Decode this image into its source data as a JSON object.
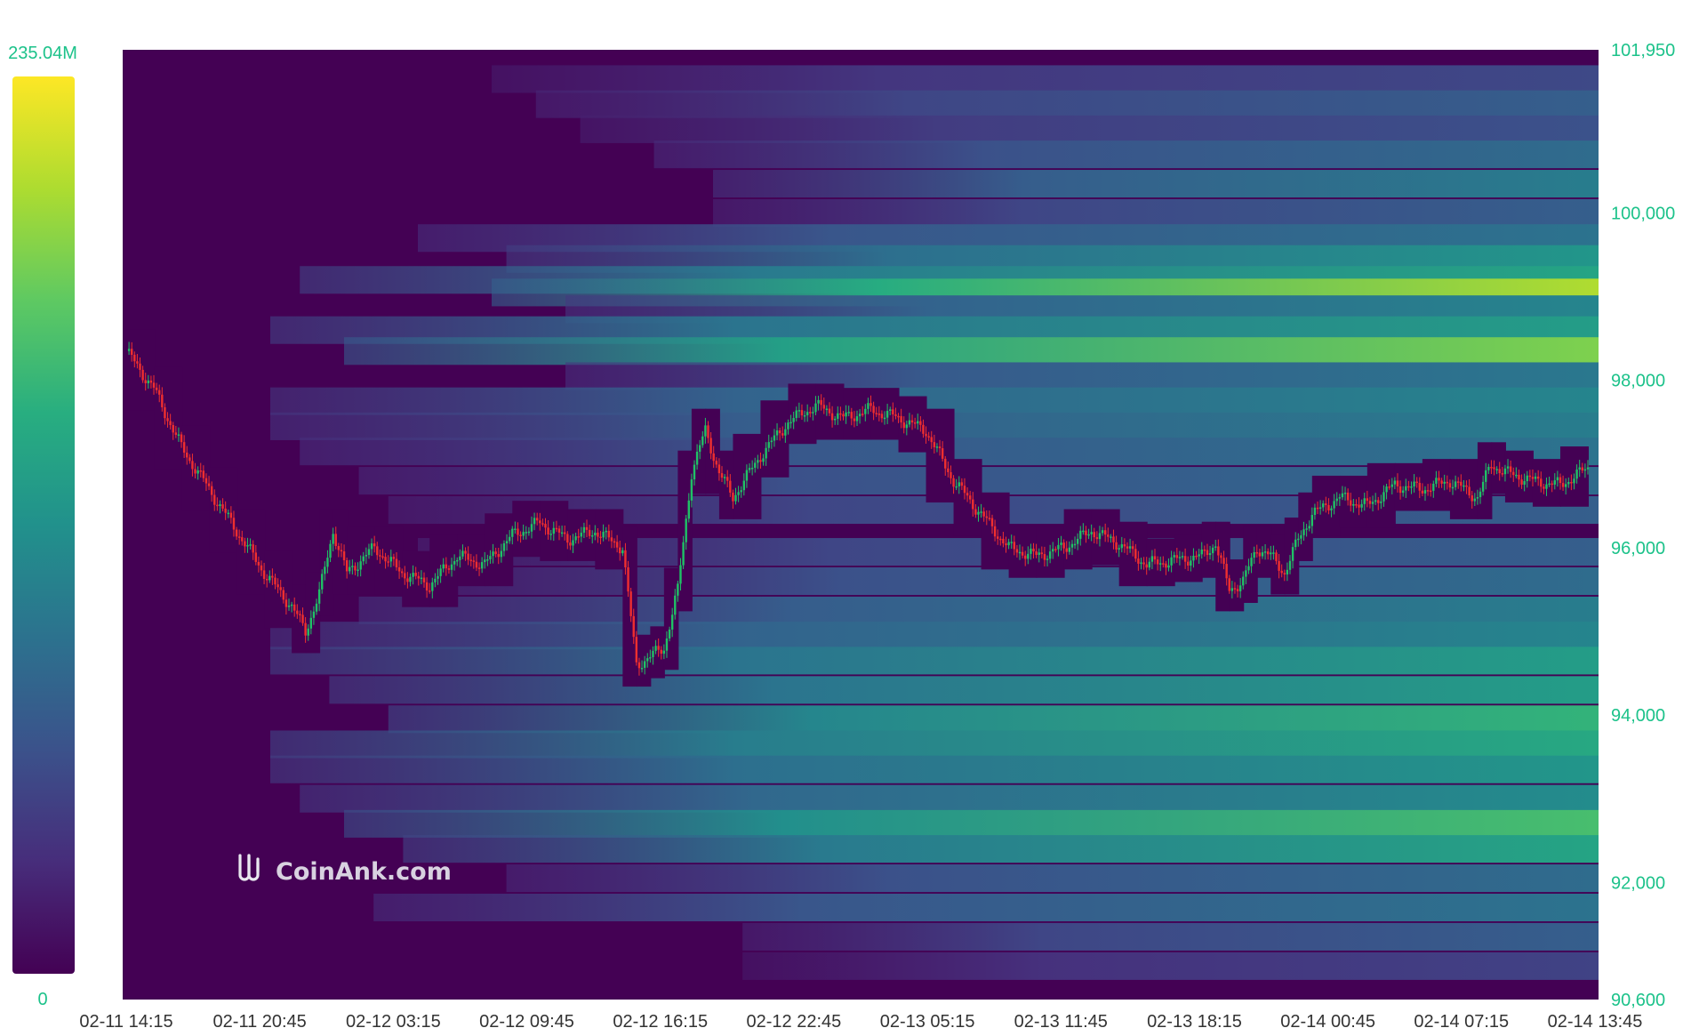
{
  "colors": {
    "scale": [
      "#440154",
      "#472d7b",
      "#3b528b",
      "#2c728e",
      "#21918c",
      "#28ae80",
      "#5ec962",
      "#addc30",
      "#fde725"
    ],
    "up": "#1fc266",
    "down": "#ef2f2f",
    "axis_text": "#1cc28a",
    "background_empty": "#440154"
  },
  "watermark": {
    "icon": "coinank-logo-icon",
    "text": "CoinAnk.com"
  },
  "chart_data": {
    "type": "heatmap",
    "title": "",
    "xlabel": "",
    "ylabel": "",
    "color_scale": {
      "min": 0,
      "max": 235.04,
      "min_label": "0",
      "max_label": "235.04M"
    },
    "ylim": [
      90600,
      101950
    ],
    "y_ticks": [
      {
        "value": 101950,
        "label": "101,950"
      },
      {
        "value": 100000,
        "label": "100,000"
      },
      {
        "value": 98000,
        "label": "98,000"
      },
      {
        "value": 96000,
        "label": "96,000"
      },
      {
        "value": 94000,
        "label": "94,000"
      },
      {
        "value": 92000,
        "label": "92,000"
      },
      {
        "value": 90600,
        "label": "90,600"
      }
    ],
    "x_ticks": [
      "02-11 14:15",
      "02-11 20:45",
      "02-12 03:15",
      "02-12 09:45",
      "02-12 16:15",
      "02-12 22:45",
      "02-13 05:15",
      "02-13 11:45",
      "02-13 18:15",
      "02-14 00:45",
      "02-14 07:15",
      "02-14 13:45"
    ],
    "price_path": [
      [
        0,
        98350
      ],
      [
        1,
        97900
      ],
      [
        2,
        97200
      ],
      [
        3,
        96700
      ],
      [
        4,
        96200
      ],
      [
        5,
        95700
      ],
      [
        6,
        95300
      ],
      [
        6.5,
        95000
      ],
      [
        7,
        95450
      ],
      [
        7.5,
        96200
      ],
      [
        8,
        95700
      ],
      [
        9,
        96000
      ],
      [
        10,
        95700
      ],
      [
        11,
        95550
      ],
      [
        12,
        95900
      ],
      [
        13,
        95800
      ],
      [
        14,
        96150
      ],
      [
        15,
        96300
      ],
      [
        16,
        96100
      ],
      [
        17,
        96200
      ],
      [
        18,
        96000
      ],
      [
        18.5,
        94600
      ],
      [
        19,
        94700
      ],
      [
        19.5,
        94800
      ],
      [
        20,
        95500
      ],
      [
        20.5,
        96900
      ],
      [
        21,
        97400
      ],
      [
        21.5,
        96900
      ],
      [
        22,
        96600
      ],
      [
        23,
        97100
      ],
      [
        24,
        97500
      ],
      [
        25,
        97700
      ],
      [
        26,
        97550
      ],
      [
        27,
        97650
      ],
      [
        28,
        97550
      ],
      [
        29,
        97400
      ],
      [
        30,
        96800
      ],
      [
        31,
        96400
      ],
      [
        32,
        96000
      ],
      [
        33,
        95900
      ],
      [
        34,
        96000
      ],
      [
        35,
        96200
      ],
      [
        36,
        96050
      ],
      [
        37,
        95800
      ],
      [
        38,
        95850
      ],
      [
        39,
        95900
      ],
      [
        39.5,
        96050
      ],
      [
        40,
        95500
      ],
      [
        40.5,
        95600
      ],
      [
        41,
        96000
      ],
      [
        41.5,
        95900
      ],
      [
        42,
        95700
      ],
      [
        42.5,
        96100
      ],
      [
        43,
        96400
      ],
      [
        44,
        96600
      ],
      [
        45,
        96500
      ],
      [
        46,
        96750
      ],
      [
        47,
        96700
      ],
      [
        48,
        96800
      ],
      [
        49,
        96600
      ],
      [
        49.5,
        97000
      ],
      [
        50,
        96900
      ],
      [
        51,
        96800
      ],
      [
        52,
        96750
      ],
      [
        53,
        96950
      ]
    ],
    "liquidation_bands": [
      {
        "price": 101600,
        "strength": 0.22,
        "start": 0.25,
        "end": 1.0
      },
      {
        "price": 101300,
        "strength": 0.3,
        "start": 0.28,
        "end": 1.0
      },
      {
        "price": 101000,
        "strength": 0.25,
        "start": 0.31,
        "end": 1.0
      },
      {
        "price": 100700,
        "strength": 0.35,
        "start": 0.36,
        "end": 1.0
      },
      {
        "price": 100350,
        "strength": 0.42,
        "start": 0.4,
        "end": 1.0
      },
      {
        "price": 100000,
        "strength": 0.3,
        "start": 0.4,
        "end": 1.0
      },
      {
        "price": 99700,
        "strength": 0.38,
        "start": 0.2,
        "end": 1.0
      },
      {
        "price": 99450,
        "strength": 0.52,
        "start": 0.26,
        "end": 1.0
      },
      {
        "price": 99200,
        "strength": 0.58,
        "start": 0.12,
        "end": 1.0
      },
      {
        "price": 99050,
        "strength": 0.88,
        "start": 0.25,
        "end": 1.0
      },
      {
        "price": 98850,
        "strength": 0.45,
        "start": 0.3,
        "end": 1.0
      },
      {
        "price": 98600,
        "strength": 0.55,
        "start": 0.1,
        "end": 1.0
      },
      {
        "price": 98350,
        "strength": 0.8,
        "start": 0.15,
        "end": 1.0
      },
      {
        "price": 98050,
        "strength": 0.4,
        "start": 0.3,
        "end": 1.0
      },
      {
        "price": 97750,
        "strength": 0.45,
        "start": 0.1,
        "end": 1.0
      },
      {
        "price": 97450,
        "strength": 0.42,
        "start": 0.1,
        "end": 1.0
      },
      {
        "price": 97150,
        "strength": 0.38,
        "start": 0.12,
        "end": 1.0
      },
      {
        "price": 96800,
        "strength": 0.35,
        "start": 0.16,
        "end": 1.0
      },
      {
        "price": 96450,
        "strength": 0.3,
        "start": 0.18,
        "end": 1.0
      },
      {
        "price": 95950,
        "strength": 0.3,
        "start": 0.2,
        "end": 1.0
      },
      {
        "price": 95600,
        "strength": 0.35,
        "start": 0.21,
        "end": 1.0
      },
      {
        "price": 95250,
        "strength": 0.42,
        "start": 0.16,
        "end": 1.0
      },
      {
        "price": 94950,
        "strength": 0.45,
        "start": 0.1,
        "end": 1.0
      },
      {
        "price": 94650,
        "strength": 0.55,
        "start": 0.1,
        "end": 1.0
      },
      {
        "price": 94300,
        "strength": 0.55,
        "start": 0.14,
        "end": 1.0
      },
      {
        "price": 93950,
        "strength": 0.65,
        "start": 0.18,
        "end": 1.0
      },
      {
        "price": 93650,
        "strength": 0.6,
        "start": 0.1,
        "end": 1.0
      },
      {
        "price": 93350,
        "strength": 0.52,
        "start": 0.1,
        "end": 1.0
      },
      {
        "price": 93000,
        "strength": 0.48,
        "start": 0.12,
        "end": 1.0
      },
      {
        "price": 92700,
        "strength": 0.7,
        "start": 0.15,
        "end": 1.0
      },
      {
        "price": 92400,
        "strength": 0.58,
        "start": 0.19,
        "end": 1.0
      },
      {
        "price": 92050,
        "strength": 0.35,
        "start": 0.26,
        "end": 1.0
      },
      {
        "price": 91700,
        "strength": 0.38,
        "start": 0.17,
        "end": 1.0
      },
      {
        "price": 91350,
        "strength": 0.3,
        "start": 0.42,
        "end": 1.0
      },
      {
        "price": 91000,
        "strength": 0.2,
        "start": 0.42,
        "end": 1.0
      }
    ]
  }
}
